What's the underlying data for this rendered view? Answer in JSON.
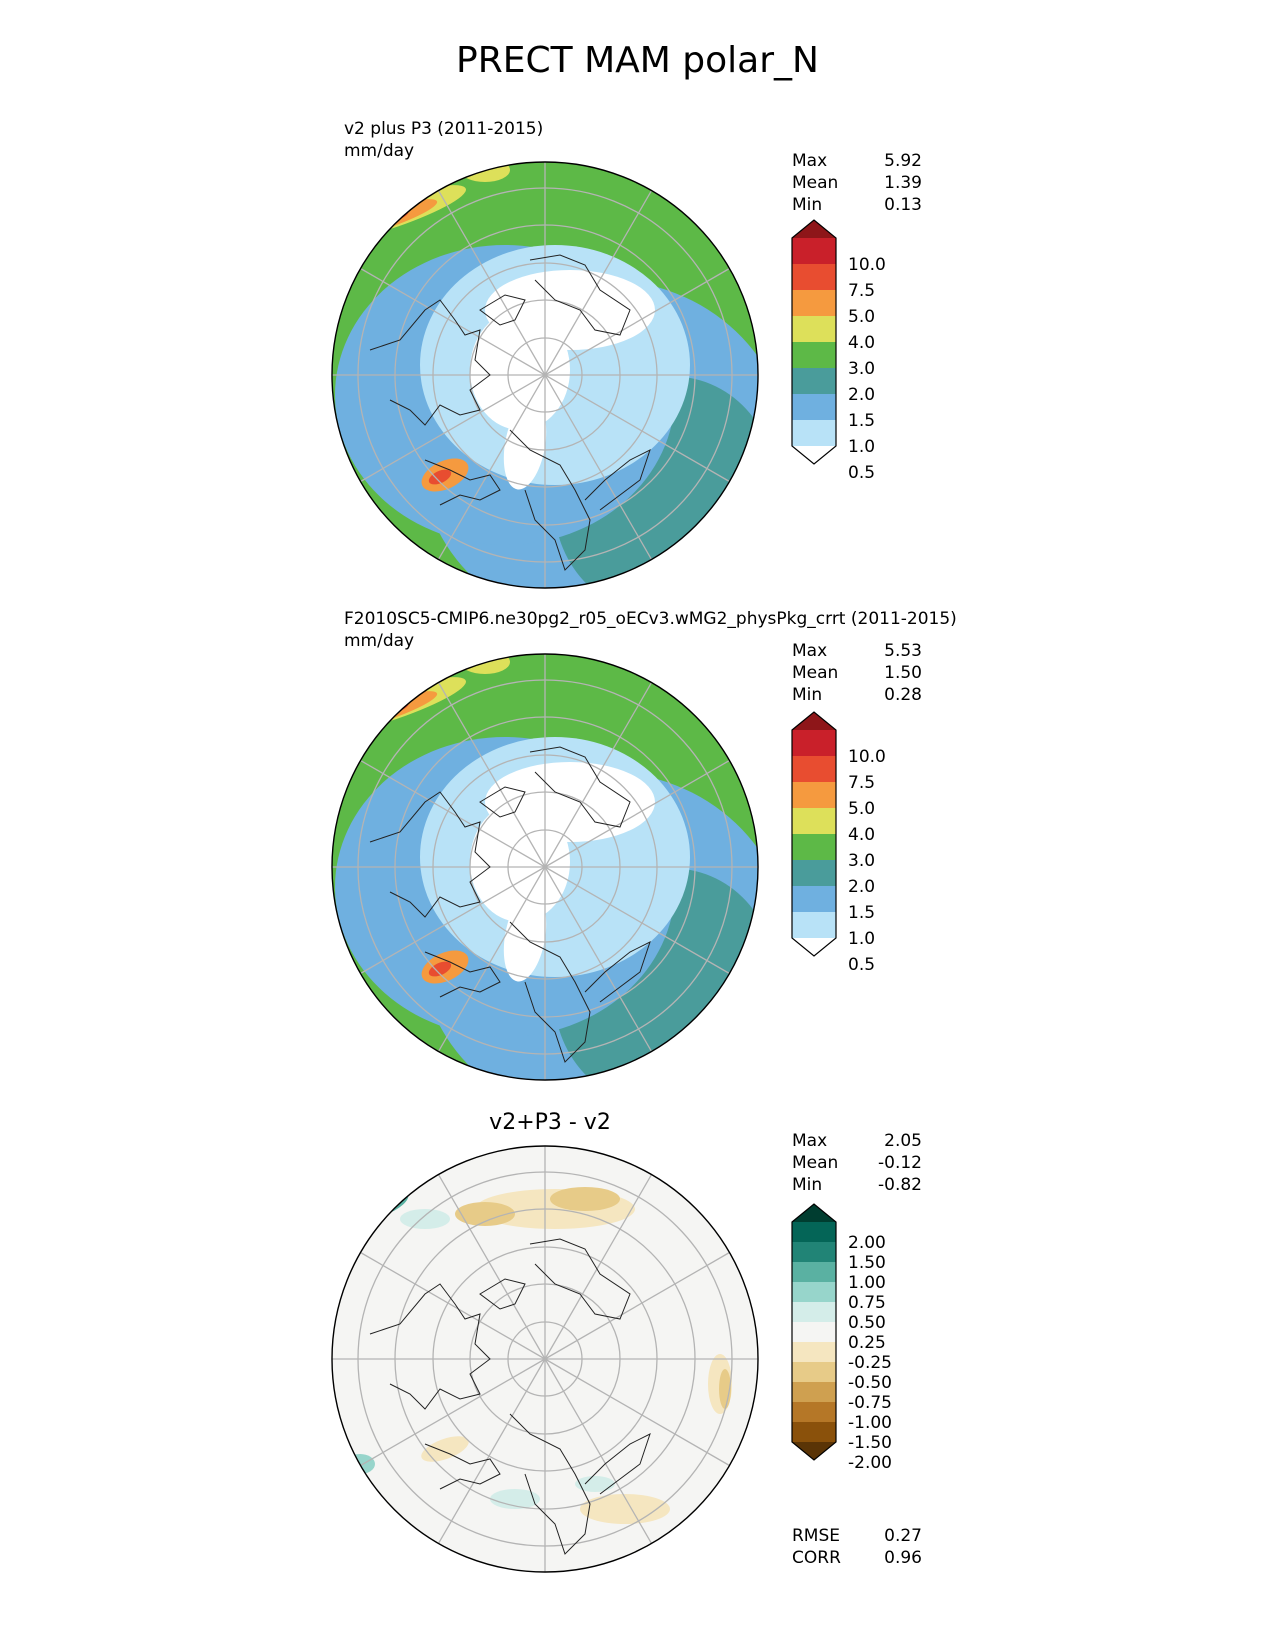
{
  "title": "PRECT MAM polar_N",
  "panels": [
    {
      "label": "v2 plus P3 (2011-2015)",
      "units": "mm/day",
      "stats": [
        {
          "name": "Max",
          "value": "5.92"
        },
        {
          "name": "Mean",
          "value": "1.39"
        },
        {
          "name": "Min",
          "value": "0.13"
        }
      ]
    },
    {
      "label": "F2010SC5-CMIP6.ne30pg2_r05_oECv3.wMG2_physPkg_crrt (2011-2015)",
      "units": "mm/day",
      "stats": [
        {
          "name": "Max",
          "value": "5.53"
        },
        {
          "name": "Mean",
          "value": "1.50"
        },
        {
          "name": "Min",
          "value": "0.28"
        }
      ]
    },
    {
      "title": "v2+P3 - v2",
      "stats": [
        {
          "name": "Max",
          "value": "2.05"
        },
        {
          "name": "Mean",
          "value": "-0.12"
        },
        {
          "name": "Min",
          "value": "-0.82"
        }
      ],
      "metrics": [
        {
          "name": "RMSE",
          "value": "0.27"
        },
        {
          "name": "CORR",
          "value": "0.96"
        }
      ]
    }
  ],
  "chart_data": [
    {
      "type": "heatmap",
      "projection": "north polar stereographic",
      "levels": [
        "0.5",
        "1.0",
        "1.5",
        "2.0",
        "3.0",
        "4.0",
        "5.0",
        "7.5",
        "10.0"
      ],
      "colors": [
        "#ffffff",
        "#b8e2f7",
        "#6fb0e0",
        "#4a9c9b",
        "#5db947",
        "#dde05a",
        "#f59a3f",
        "#e84d30",
        "#c9202a",
        "#8e1619"
      ]
    },
    {
      "type": "heatmap",
      "projection": "north polar stereographic",
      "levels": [
        "0.5",
        "1.0",
        "1.5",
        "2.0",
        "3.0",
        "4.0",
        "5.0",
        "7.5",
        "10.0"
      ],
      "colors": [
        "#ffffff",
        "#b8e2f7",
        "#6fb0e0",
        "#4a9c9b",
        "#5db947",
        "#dde05a",
        "#f59a3f",
        "#e84d30",
        "#c9202a",
        "#8e1619"
      ]
    },
    {
      "type": "heatmap",
      "projection": "north polar stereographic",
      "levels": [
        "-2.00",
        "-1.50",
        "-1.00",
        "-0.75",
        "-0.50",
        "-0.25",
        "0.25",
        "0.50",
        "0.75",
        "1.00",
        "1.50",
        "2.00"
      ],
      "colors": [
        "#5a3406",
        "#8a510b",
        "#b57727",
        "#cfa050",
        "#e7cb88",
        "#f5e6c0",
        "#f5f5f3",
        "#d4ede9",
        "#97d5cb",
        "#5ab1a2",
        "#218476",
        "#046557",
        "#003d30"
      ]
    }
  ]
}
